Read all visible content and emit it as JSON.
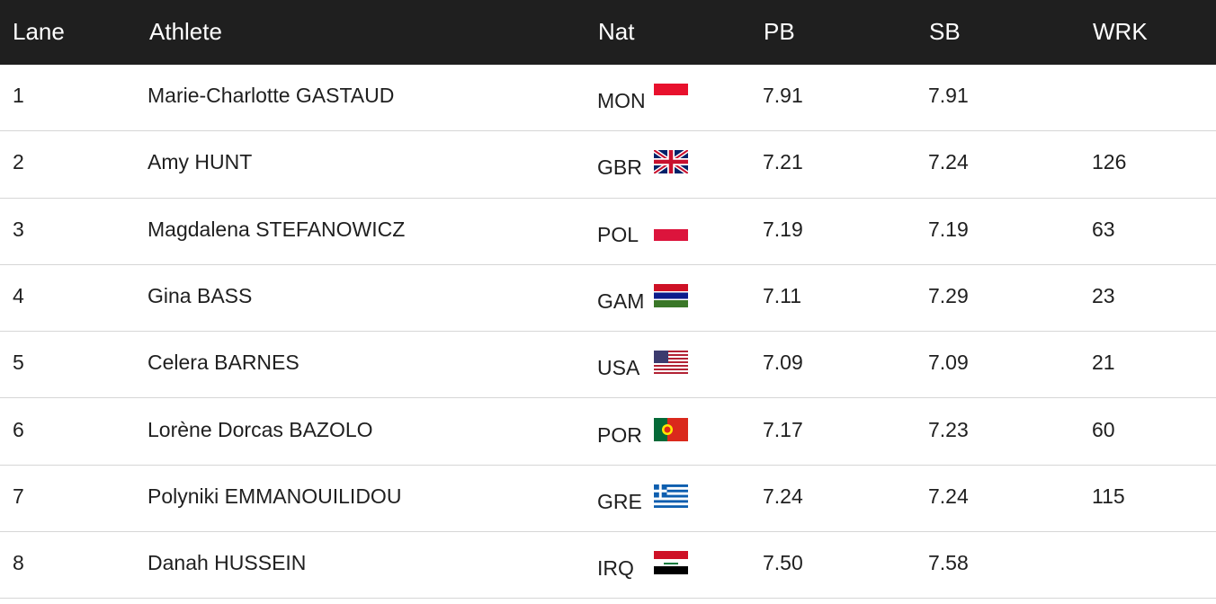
{
  "table": {
    "header": [
      "Lane",
      "Athlete",
      "Nat",
      "PB",
      "SB",
      "WRK"
    ],
    "rows": [
      [
        "1",
        "Marie-Charlotte GASTAUD",
        "MON",
        "7.91",
        "7.91",
        null
      ],
      [
        "2",
        "Amy HUNT",
        "GBR",
        "7.21",
        "7.24",
        "126"
      ],
      [
        "3",
        "Magdalena STEFANOWICZ",
        "POL",
        "7.19",
        "7.19",
        "63"
      ],
      [
        "4",
        "Gina BASS",
        "GAM",
        "7.11",
        "7.29",
        "23"
      ],
      [
        "5",
        "Celera BARNES",
        "USA",
        "7.09",
        "7.09",
        "21"
      ],
      [
        "6",
        "Lorène Dorcas BAZOLO",
        "POR",
        "7.17",
        "7.23",
        "60"
      ],
      [
        "7",
        "Polyniki EMMANOUILIDOU",
        "GRE",
        "7.24",
        "7.24",
        "115"
      ],
      [
        "8",
        "Danah HUSSEIN",
        "IRQ",
        "7.50",
        "7.58",
        null
      ]
    ]
  }
}
